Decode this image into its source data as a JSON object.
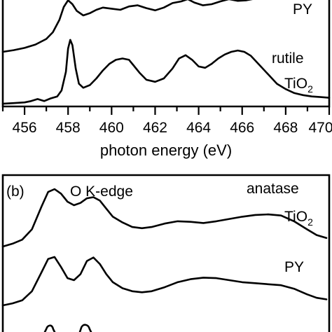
{
  "chart_data": [
    {
      "panel": "a",
      "type": "line",
      "xlabel": "photon energy (eV)",
      "xlim": [
        455,
        470
      ],
      "x_ticks": [
        456,
        458,
        460,
        462,
        464,
        466,
        468,
        470
      ],
      "x_tick_labels": [
        "456",
        "458",
        "460",
        "462",
        "464",
        "466",
        "468",
        "470"
      ],
      "series": [
        {
          "name": "PY",
          "label": "PY",
          "x": [
            455.0,
            455.5,
            456.0,
            456.5,
            457.0,
            457.3,
            457.6,
            457.8,
            458.0,
            458.2,
            458.4,
            458.7,
            459.0,
            459.3,
            459.6,
            460.0,
            460.4,
            460.8,
            461.2,
            461.6,
            462.0,
            462.4,
            462.8,
            463.2,
            463.5,
            463.8,
            464.2,
            464.6,
            465.0,
            465.4,
            465.8,
            466.2,
            466.6,
            467.0
          ],
          "y": [
            0.05,
            0.08,
            0.12,
            0.18,
            0.28,
            0.4,
            0.62,
            0.85,
            0.97,
            0.9,
            0.78,
            0.7,
            0.74,
            0.8,
            0.84,
            0.82,
            0.8,
            0.86,
            0.88,
            0.83,
            0.79,
            0.84,
            0.92,
            0.95,
            0.99,
            0.93,
            0.88,
            0.9,
            0.95,
            0.99,
            0.96,
            0.97,
            1.0,
            1.0
          ]
        },
        {
          "name": "rutile TiO2",
          "label_line1": "rutile",
          "label_line2": "TiO",
          "label_sub": "2",
          "x": [
            455.0,
            455.5,
            456.0,
            456.3,
            456.6,
            456.9,
            457.2,
            457.5,
            457.7,
            457.9,
            458.0,
            458.1,
            458.2,
            458.35,
            458.5,
            458.7,
            459.0,
            459.3,
            459.6,
            459.9,
            460.2,
            460.5,
            460.8,
            461.0,
            461.3,
            461.6,
            462.0,
            462.4,
            462.8,
            463.1,
            463.4,
            463.7,
            464.0,
            464.3,
            464.6,
            464.9,
            465.2,
            465.5,
            465.8,
            466.1,
            466.4,
            466.8,
            467.2,
            467.6,
            468.0,
            468.4,
            468.8,
            469.2,
            469.6,
            470.0
          ],
          "y": [
            0.02,
            0.03,
            0.04,
            0.06,
            0.09,
            0.06,
            0.1,
            0.13,
            0.22,
            0.5,
            0.85,
            0.98,
            0.9,
            0.55,
            0.32,
            0.26,
            0.3,
            0.4,
            0.52,
            0.62,
            0.68,
            0.7,
            0.68,
            0.6,
            0.48,
            0.38,
            0.35,
            0.4,
            0.55,
            0.7,
            0.75,
            0.68,
            0.58,
            0.56,
            0.62,
            0.7,
            0.76,
            0.8,
            0.82,
            0.8,
            0.74,
            0.6,
            0.46,
            0.32,
            0.24,
            0.18,
            0.15,
            0.13,
            0.12,
            0.11
          ]
        }
      ]
    },
    {
      "panel": "b",
      "type": "line",
      "panel_label": "(b)",
      "edge_label": "O K-edge",
      "series": [
        {
          "name": "anatase TiO2",
          "label_line1": "anatase",
          "label_line2": "TiO",
          "label_sub": "2",
          "x": [
            0.0,
            0.03,
            0.06,
            0.09,
            0.12,
            0.14,
            0.16,
            0.18,
            0.2,
            0.22,
            0.24,
            0.26,
            0.28,
            0.3,
            0.32,
            0.34,
            0.37,
            0.4,
            0.43,
            0.46,
            0.5,
            0.54,
            0.58,
            0.62,
            0.66,
            0.7,
            0.74,
            0.78,
            0.82,
            0.86,
            0.9,
            0.94,
            0.97,
            1.0
          ],
          "y": [
            0.0,
            0.05,
            0.12,
            0.3,
            0.7,
            0.95,
            1.0,
            0.92,
            0.78,
            0.72,
            0.76,
            0.84,
            0.86,
            0.8,
            0.66,
            0.52,
            0.42,
            0.34,
            0.32,
            0.34,
            0.4,
            0.44,
            0.43,
            0.41,
            0.44,
            0.48,
            0.52,
            0.55,
            0.56,
            0.54,
            0.44,
            0.3,
            0.2,
            0.15
          ]
        },
        {
          "name": "PY",
          "label": "PY",
          "x": [
            0.0,
            0.03,
            0.06,
            0.09,
            0.12,
            0.14,
            0.16,
            0.18,
            0.2,
            0.22,
            0.24,
            0.26,
            0.28,
            0.3,
            0.32,
            0.34,
            0.37,
            0.4,
            0.43,
            0.46,
            0.5,
            0.54,
            0.58,
            0.62,
            0.66,
            0.7,
            0.74,
            0.78,
            0.82,
            0.86,
            0.9,
            0.94,
            0.97,
            1.0
          ],
          "y": [
            0.0,
            0.04,
            0.1,
            0.28,
            0.66,
            0.92,
            0.96,
            0.76,
            0.54,
            0.5,
            0.62,
            0.88,
            0.95,
            0.82,
            0.62,
            0.46,
            0.34,
            0.28,
            0.26,
            0.28,
            0.36,
            0.46,
            0.52,
            0.55,
            0.54,
            0.5,
            0.46,
            0.44,
            0.42,
            0.4,
            0.33,
            0.22,
            0.15,
            0.12
          ]
        }
      ]
    }
  ]
}
